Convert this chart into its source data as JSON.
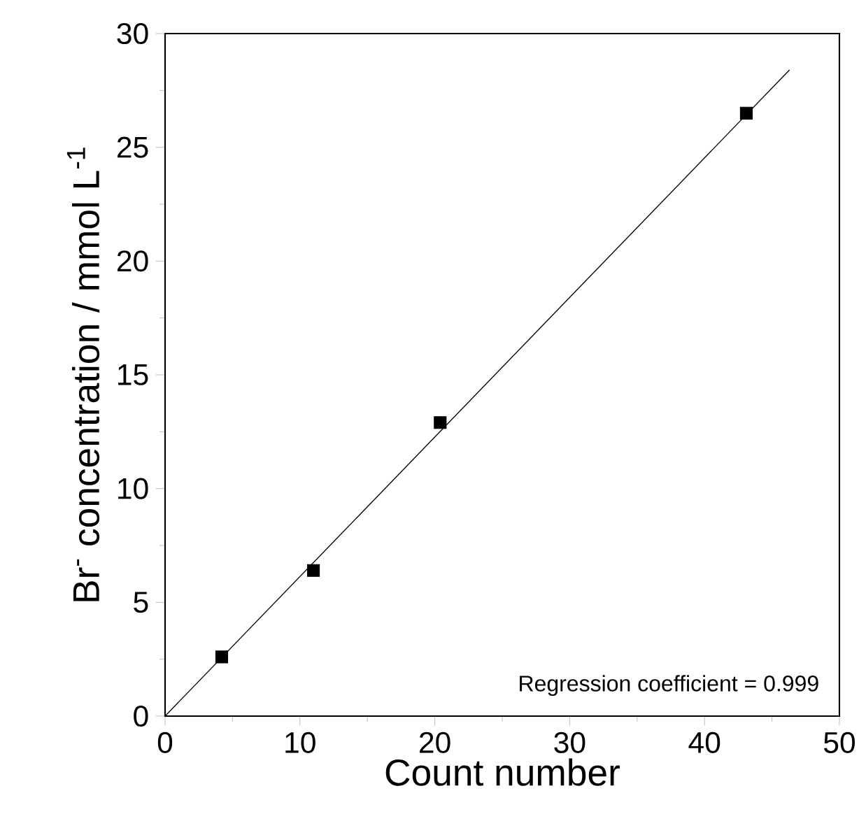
{
  "chart_data": {
    "type": "scatter",
    "xlabel": "Count number",
    "ylabel": "Br$^{-}$ concentration / mmol L$^{-1}$",
    "xlim": [
      0,
      50
    ],
    "ylim": [
      0,
      30
    ],
    "xticks": [
      0,
      10,
      20,
      30,
      40,
      50
    ],
    "yticks": [
      0,
      5,
      10,
      15,
      20,
      25,
      30
    ],
    "annotations": [
      "Regression coefficient = 0.999"
    ],
    "series": [
      {
        "x": [
          4.2,
          11.0,
          20.4,
          43.1
        ],
        "values": [
          2.6,
          6.4,
          12.9,
          26.5
        ],
        "color": "#000000",
        "marker": "square"
      },
      {
        "type": "line",
        "x": [
          0,
          46.3
        ],
        "values": [
          0,
          28.4
        ],
        "color": "#000000"
      }
    ]
  }
}
